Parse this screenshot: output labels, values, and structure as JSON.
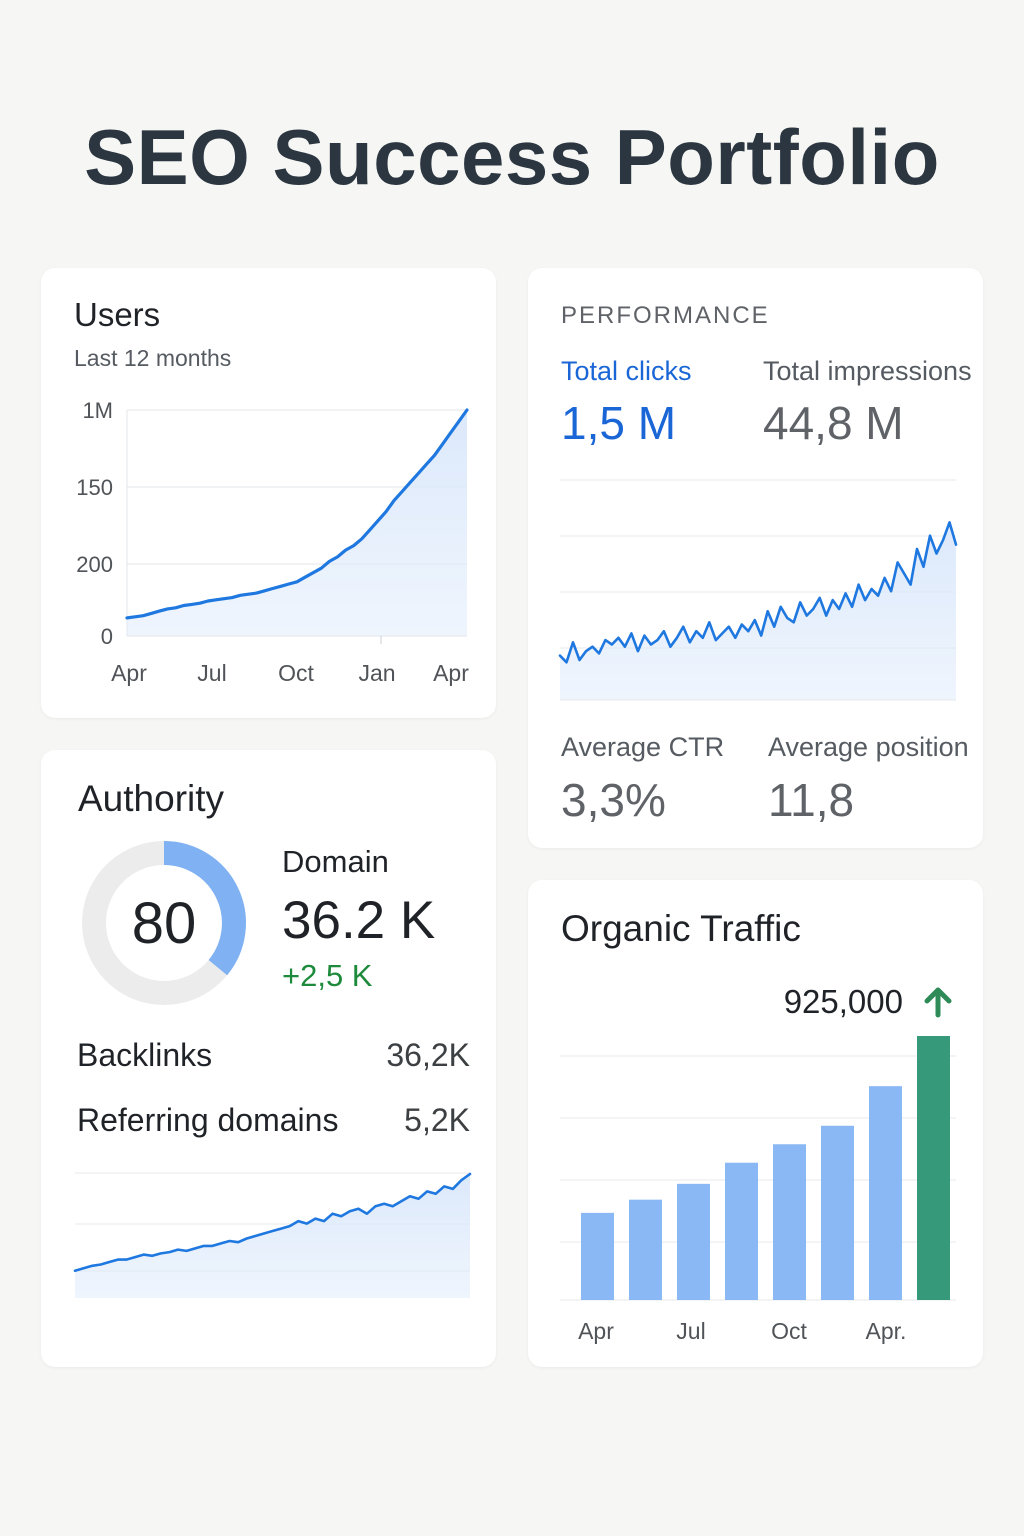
{
  "page": {
    "title": "SEO Success Portfolio"
  },
  "users": {
    "title": "Users",
    "subtitle": "Last 12 months",
    "chart_data": {
      "type": "area",
      "yticks": [
        "1M",
        "150",
        "200",
        "0"
      ],
      "xticks": [
        "Apr",
        "Jul",
        "Oct",
        "Jan",
        "Apr"
      ],
      "ylim": [
        0,
        100
      ],
      "values": [
        8,
        8.5,
        9,
        10,
        11,
        12,
        12.5,
        13.5,
        14,
        14.5,
        15.5,
        16,
        16.5,
        17,
        18,
        18.5,
        19,
        20,
        21,
        22,
        23,
        24,
        26,
        28,
        30,
        33,
        35,
        38,
        40,
        43,
        47,
        51,
        55,
        60,
        64,
        68,
        72,
        76,
        80,
        85,
        90,
        95,
        100
      ],
      "color": "#1f78e0",
      "fill": "#dce9fb"
    }
  },
  "performance": {
    "overline": "PERFORMANCE",
    "total_clicks": {
      "label": "Total clicks",
      "value": "1,5 M"
    },
    "total_impressions": {
      "label": "Total impressions",
      "value": "44,8 M"
    },
    "average_ctr": {
      "label": "Average CTR",
      "value": "3,3%"
    },
    "average_position": {
      "label": "Average position",
      "value": "11,8"
    },
    "chart_data": {
      "type": "area",
      "ylim": [
        0,
        100
      ],
      "values": [
        20,
        17,
        26,
        18,
        22,
        24,
        21,
        27,
        25,
        28,
        24,
        30,
        22,
        29,
        25,
        27,
        31,
        24,
        28,
        33,
        26,
        31,
        28,
        35,
        27,
        30,
        33,
        28,
        34,
        31,
        36,
        29,
        40,
        33,
        42,
        37,
        35,
        44,
        38,
        41,
        46,
        38,
        45,
        41,
        48,
        42,
        52,
        45,
        50,
        47,
        55,
        49,
        62,
        57,
        52,
        68,
        60,
        74,
        66,
        72,
        80,
        70
      ],
      "color": "#1f78e0",
      "fill": "#dce9fb"
    }
  },
  "authority": {
    "title": "Authority",
    "score": "80",
    "score_fraction": 0.8,
    "domain": {
      "label": "Domain",
      "value": "36.2 K",
      "change": "+2,5 K"
    },
    "backlinks": {
      "label": "Backlinks",
      "value": "36,2K"
    },
    "referring_domains": {
      "label": "Referring domains",
      "value": "5,2K"
    },
    "chart_data": {
      "type": "area",
      "ylim": [
        0,
        100
      ],
      "values": [
        22,
        24,
        26,
        27,
        29,
        31,
        31,
        33,
        35,
        34,
        36,
        37,
        39,
        38,
        40,
        42,
        42,
        44,
        46,
        45,
        48,
        50,
        52,
        54,
        56,
        58,
        62,
        60,
        64,
        62,
        68,
        66,
        70,
        72,
        68,
        74,
        76,
        74,
        78,
        82,
        80,
        86,
        84,
        90,
        88,
        95,
        100
      ],
      "color": "#1f78e0",
      "fill": "#dce9fb"
    }
  },
  "organic": {
    "title": "Organic Traffic",
    "value": "925,000",
    "chart_data": {
      "type": "bar",
      "xticks": [
        "Apr",
        "Jul",
        "Oct",
        "Apr."
      ],
      "ylim": [
        0,
        100
      ],
      "values": [
        33,
        38,
        44,
        52,
        59,
        66,
        81,
        100
      ],
      "colors": [
        "#8ab8f5",
        "#8ab8f5",
        "#8ab8f5",
        "#8ab8f5",
        "#8ab8f5",
        "#8ab8f5",
        "#8ab8f5",
        "#36997a"
      ],
      "arrow_color": "#2e8b57"
    }
  }
}
